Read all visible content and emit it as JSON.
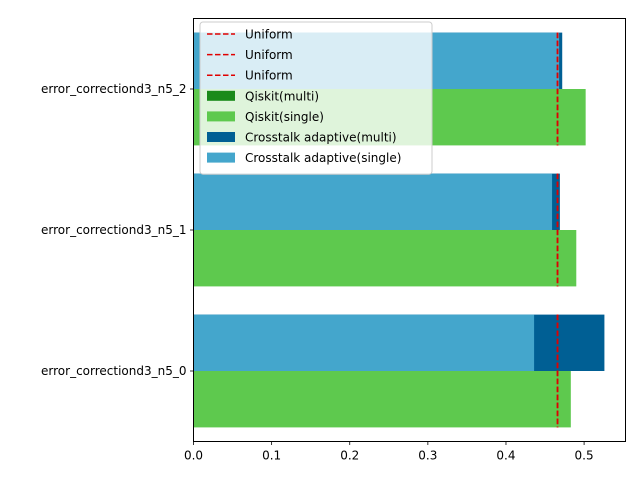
{
  "chart_data": {
    "type": "bar",
    "orientation": "horizontal",
    "categories": [
      "error_correctiond3_n5_0",
      "error_correctiond3_n5_1",
      "error_correctiond3_n5_2"
    ],
    "series": [
      {
        "name": "Qiskit(multi)",
        "color": "#1a8a1a",
        "values": [
          0.0,
          0.0,
          0.0
        ]
      },
      {
        "name": "Qiskit(single)",
        "color": "#5ec94e",
        "values": [
          0.483,
          0.49,
          0.502
        ]
      },
      {
        "name": "Crosstalk adaptive(multi)",
        "color": "#005f94",
        "values": [
          0.526,
          0.469,
          0.472
        ]
      },
      {
        "name": "Crosstalk adaptive(single)",
        "color": "#44a6cc",
        "values": [
          0.436,
          0.459,
          0.468
        ]
      }
    ],
    "reference_lines": [
      {
        "name": "Uniform",
        "color": "#e00000",
        "style": "dashed",
        "values": [
          0.466,
          0.466,
          0.466
        ]
      },
      {
        "name": "Uniform",
        "color": "#e00000",
        "style": "dashed",
        "values": [
          0.466,
          0.466,
          0.466
        ]
      },
      {
        "name": "Uniform",
        "color": "#e00000",
        "style": "dashed",
        "values": [
          0.466,
          0.466,
          0.466
        ]
      }
    ],
    "xlim": [
      0,
      0.553
    ],
    "xticks": [
      "0.0",
      "0.1",
      "0.2",
      "0.3",
      "0.4",
      "0.5"
    ],
    "xtick_values": [
      0.0,
      0.1,
      0.2,
      0.3,
      0.4,
      0.5
    ],
    "title": "",
    "xlabel": "",
    "ylabel": "",
    "grid": false,
    "legend_position": "top-center"
  }
}
